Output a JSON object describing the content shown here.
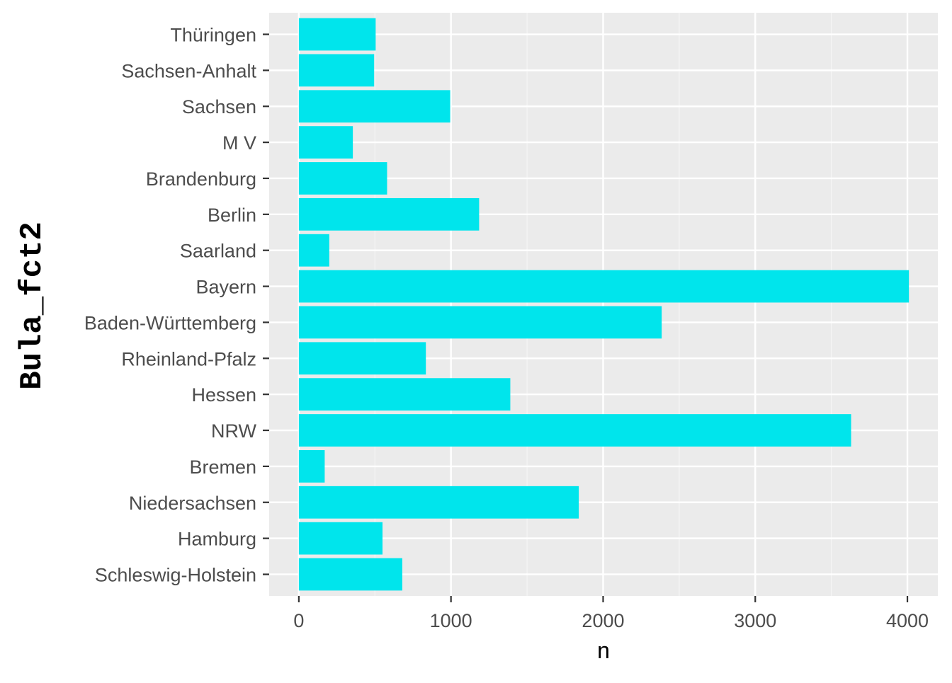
{
  "chart_data": {
    "type": "bar",
    "orientation": "horizontal",
    "categories": [
      "Schleswig-Holstein",
      "Hamburg",
      "Niedersachsen",
      "Bremen",
      "NRW",
      "Hessen",
      "Rheinland-Pfalz",
      "Baden-Württemberg",
      "Bayern",
      "Saarland",
      "Berlin",
      "Brandenburg",
      "M V",
      "Sachsen",
      "Sachsen-Anhalt",
      "Thüringen"
    ],
    "values": [
      680,
      550,
      1840,
      170,
      3630,
      1390,
      835,
      2385,
      4010,
      200,
      1185,
      580,
      355,
      995,
      495,
      505
    ],
    "xlabel": "n",
    "ylabel": "Bula_fct2",
    "xlim": [
      -195,
      4200
    ],
    "xticks": [
      0,
      1000,
      2000,
      3000,
      4000
    ],
    "tick_labels": [
      "0",
      "1000",
      "2000",
      "3000",
      "4000"
    ],
    "grid": true,
    "colors": {
      "bar": "#00e5ec",
      "panel": "#ebebeb",
      "grid_major": "#ffffff",
      "grid_minor": "#f5f5f5",
      "tick": "#333333"
    }
  }
}
